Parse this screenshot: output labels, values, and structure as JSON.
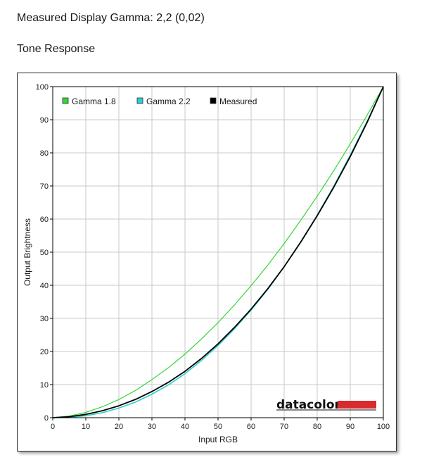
{
  "header": {
    "measured_gamma": "Measured Display Gamma: 2,2 (0,02)",
    "section_title": "Tone Response"
  },
  "logo": {
    "text": "datacolor",
    "bar_color": "#d92b2f"
  },
  "chart_data": {
    "type": "line",
    "title": "",
    "xlabel": "Input RGB",
    "ylabel": "Output Brightness",
    "xlim": [
      0,
      100
    ],
    "ylim": [
      0,
      100
    ],
    "xticks": [
      0,
      10,
      20,
      30,
      40,
      50,
      60,
      70,
      80,
      90,
      100
    ],
    "yticks": [
      0,
      10,
      20,
      30,
      40,
      50,
      60,
      70,
      80,
      90,
      100
    ],
    "grid": true,
    "legend_position": "top-left",
    "x": [
      0,
      5,
      10,
      15,
      20,
      25,
      30,
      35,
      40,
      45,
      50,
      55,
      60,
      65,
      70,
      75,
      80,
      85,
      90,
      95,
      100
    ],
    "series": [
      {
        "name": "Gamma 1.8",
        "color": "#33d633",
        "values": [
          0,
          0.5,
          1.6,
          3.3,
          5.5,
          8.2,
          11.5,
          15.1,
          19.2,
          23.8,
          28.7,
          34.1,
          39.9,
          46.0,
          52.6,
          59.6,
          66.9,
          74.6,
          82.7,
          91.2,
          100
        ]
      },
      {
        "name": "Gamma 2.2",
        "color": "#33cccc",
        "values": [
          0,
          0.1,
          0.6,
          1.5,
          2.9,
          4.7,
          7.1,
          9.9,
          13.3,
          17.3,
          21.8,
          26.9,
          32.5,
          38.7,
          45.6,
          53.1,
          61.2,
          69.9,
          79.3,
          89.3,
          100
        ]
      },
      {
        "name": "Measured",
        "color": "#000000",
        "values": [
          0,
          0.3,
          1.0,
          2.1,
          3.6,
          5.5,
          7.9,
          10.7,
          14.0,
          17.9,
          22.3,
          27.3,
          32.8,
          38.9,
          45.6,
          53.0,
          61.0,
          69.6,
          78.9,
          89.0,
          100
        ]
      }
    ]
  }
}
